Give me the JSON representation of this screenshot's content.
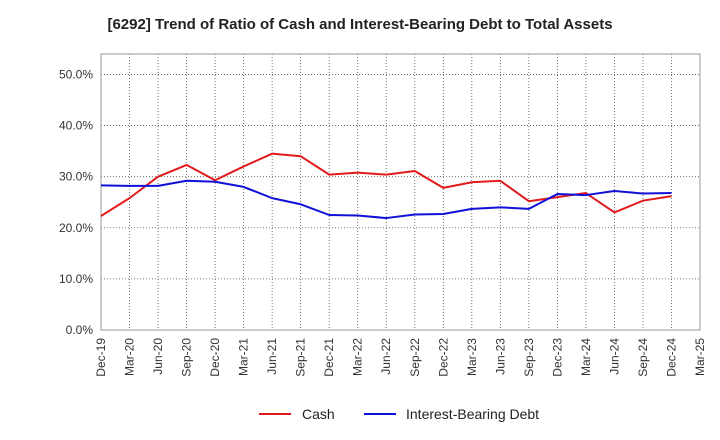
{
  "chart_data": {
    "type": "line",
    "title": "[6292]  Trend of Ratio of Cash and Interest-Bearing Debt to Total Assets",
    "xlabel": "",
    "ylabel": "",
    "ylim": [
      0,
      54
    ],
    "yticks": [
      0,
      10,
      20,
      30,
      40,
      50
    ],
    "ytick_labels": [
      "0.0%",
      "10.0%",
      "20.0%",
      "30.0%",
      "40.0%",
      "50.0%"
    ],
    "categories": [
      "Dec-19",
      "Mar-20",
      "Jun-20",
      "Sep-20",
      "Dec-20",
      "Mar-21",
      "Jun-21",
      "Sep-21",
      "Dec-21",
      "Mar-22",
      "Jun-22",
      "Sep-22",
      "Dec-22",
      "Mar-23",
      "Jun-23",
      "Sep-23",
      "Dec-23",
      "Mar-24",
      "Jun-24",
      "Sep-24",
      "Dec-24",
      "Mar-25"
    ],
    "grid": true,
    "legend_position": "bottom",
    "series": [
      {
        "name": "Cash",
        "color": "#e31a1c",
        "values": [
          22.3,
          25.8,
          30.0,
          32.3,
          29.3,
          32.0,
          34.5,
          34.0,
          30.4,
          30.8,
          30.4,
          31.1,
          27.8,
          28.9,
          29.2,
          25.2,
          26.0,
          26.8,
          23.0,
          25.3,
          26.2,
          null
        ]
      },
      {
        "name": "Interest-Bearing Debt",
        "color": "#1010d8",
        "values": [
          28.3,
          28.2,
          28.2,
          29.2,
          29.0,
          28.0,
          25.8,
          24.6,
          22.5,
          22.4,
          21.9,
          22.6,
          22.7,
          23.7,
          24.0,
          23.7,
          26.6,
          26.4,
          27.2,
          26.7,
          26.8,
          null
        ]
      }
    ]
  }
}
